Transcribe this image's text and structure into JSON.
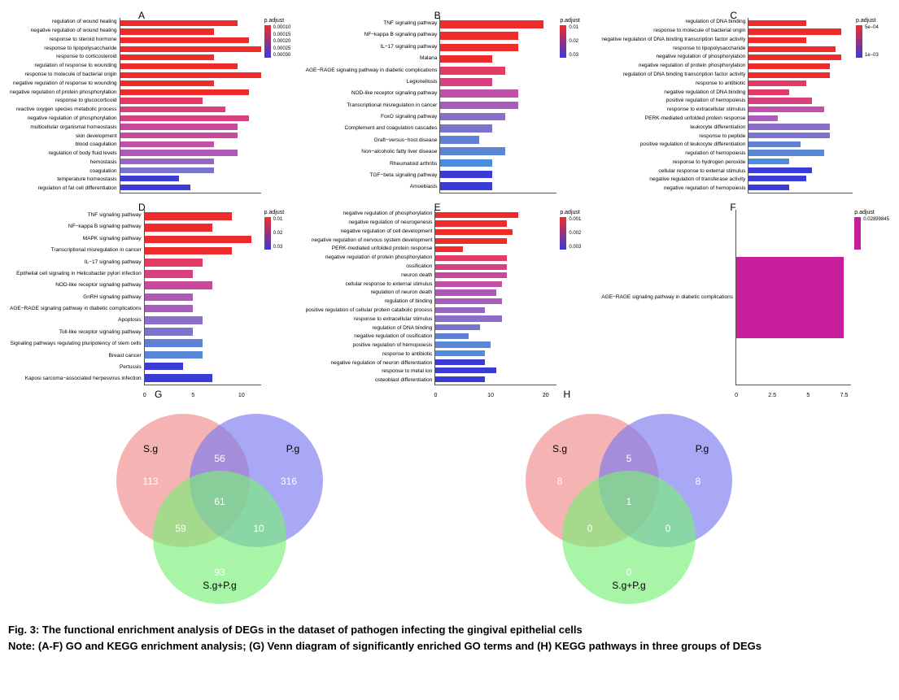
{
  "panels": {
    "A": {
      "label": "A",
      "type": "bar",
      "max_x": 12,
      "x_ticks": [
        0,
        5,
        10
      ],
      "legend_title": "p.adjust",
      "legend_values": [
        "0.00010",
        "0.00015",
        "0.00020",
        "0.00025",
        "0.00030"
      ],
      "gradient_top": "#ee2c2c",
      "gradient_bottom": "#3b3bd6",
      "items": [
        {
          "label": "regulation of wound healing",
          "value": 10,
          "color": "#ee2c2c"
        },
        {
          "label": "negative regulation of wound healing",
          "value": 8,
          "color": "#ee2c2c"
        },
        {
          "label": "response to steroid hormone",
          "value": 11,
          "color": "#ee2c2c"
        },
        {
          "label": "response to lipopolysaccharide",
          "value": 12,
          "color": "#ee2c2c"
        },
        {
          "label": "response to corticosteroid",
          "value": 8,
          "color": "#ee2c2c"
        },
        {
          "label": "regulation of response to wounding",
          "value": 10,
          "color": "#ee2c2c"
        },
        {
          "label": "response to molecule of bacterial origin",
          "value": 12,
          "color": "#ee2c2c"
        },
        {
          "label": "negative regulation of response to wounding",
          "value": 8,
          "color": "#ee2c2c"
        },
        {
          "label": "negative regulation of protein phosphorylation",
          "value": 11,
          "color": "#ee2c2c"
        },
        {
          "label": "response to glucocorticoid",
          "value": 7,
          "color": "#e43b66"
        },
        {
          "label": "reactive oxygen species metabolic process",
          "value": 9,
          "color": "#d8407f"
        },
        {
          "label": "negative regulation of phosphorylation",
          "value": 11,
          "color": "#d8407f"
        },
        {
          "label": "multicellular organismal homeostasis",
          "value": 10,
          "color": "#c84a9a"
        },
        {
          "label": "skin development",
          "value": 10,
          "color": "#c84a9a"
        },
        {
          "label": "blood coagulation",
          "value": 8,
          "color": "#c050a8"
        },
        {
          "label": "regulation of body fluid levels",
          "value": 10,
          "color": "#b058b6"
        },
        {
          "label": "hemostasis",
          "value": 8,
          "color": "#9a64c2"
        },
        {
          "label": "coagulation",
          "value": 8,
          "color": "#7a74cc"
        },
        {
          "label": "temperature homeostasis",
          "value": 5,
          "color": "#3b3bd6"
        },
        {
          "label": "regulation of fat cell differentiation",
          "value": 6,
          "color": "#3b3bd6"
        }
      ]
    },
    "B": {
      "label": "B",
      "type": "bar",
      "max_x": 9,
      "x_ticks": [
        0,
        2,
        4,
        6,
        8
      ],
      "legend_title": "p.adjust",
      "legend_values": [
        "0.01",
        "0.02",
        "0.03"
      ],
      "gradient_top": "#ee2c2c",
      "gradient_bottom": "#3b3bd6",
      "items": [
        {
          "label": "TNF signaling pathway",
          "value": 8,
          "color": "#ee2c2c"
        },
        {
          "label": "NF−kappa B signaling pathway",
          "value": 6,
          "color": "#ee2c2c"
        },
        {
          "label": "IL−17 signaling pathway",
          "value": 6,
          "color": "#ee2c2c"
        },
        {
          "label": "Malaria",
          "value": 4,
          "color": "#ee2c2c"
        },
        {
          "label": "AGE−RAGE signaling pathway in diabetic complications",
          "value": 5,
          "color": "#e43b66"
        },
        {
          "label": "Legionellosis",
          "value": 4,
          "color": "#d8407f"
        },
        {
          "label": "NOD-like receptor signaling pathway",
          "value": 6,
          "color": "#c050a8"
        },
        {
          "label": "Transcriptional misregulation in cancer",
          "value": 6,
          "color": "#a85cbc"
        },
        {
          "label": "FoxO signaling pathway",
          "value": 5,
          "color": "#8a6ec8"
        },
        {
          "label": "Complement and coagulation cascades",
          "value": 4,
          "color": "#7a74cc"
        },
        {
          "label": "Graft−versus−host disease",
          "value": 3,
          "color": "#6080d4"
        },
        {
          "label": "Non−alcoholic fatty liver disease",
          "value": 5,
          "color": "#5a86d6"
        },
        {
          "label": "Rheumatoid arthritis",
          "value": 4,
          "color": "#4b8cdc"
        },
        {
          "label": "TGF−beta signaling pathway",
          "value": 4,
          "color": "#3b3bd6"
        },
        {
          "label": "Amoebiasis",
          "value": 4,
          "color": "#3b3bd6"
        }
      ]
    },
    "C": {
      "label": "C",
      "type": "bar",
      "max_x": 18,
      "x_ticks": [
        0,
        5,
        10,
        15
      ],
      "legend_title": "p.adjust",
      "legend_values": [
        "5e−04",
        "1e−03"
      ],
      "gradient_top": "#ee2c2c",
      "gradient_bottom": "#3b3bd6",
      "items": [
        {
          "label": "regulation of DNA binding",
          "value": 10,
          "color": "#ee2c2c"
        },
        {
          "label": "response to molecule of bacterial origin",
          "value": 16,
          "color": "#ee2c2c"
        },
        {
          "label": "negative regulation of DNA binding transcription factor activity",
          "value": 10,
          "color": "#ee2c2c"
        },
        {
          "label": "response to lipopolysaccharide",
          "value": 15,
          "color": "#ee2c2c"
        },
        {
          "label": "negative regulation of phosphorylation",
          "value": 16,
          "color": "#ee2c2c"
        },
        {
          "label": "negative regulation of protein phosphorylation",
          "value": 14,
          "color": "#ee2c2c"
        },
        {
          "label": "regulation of DNA binding transcription factor activity",
          "value": 14,
          "color": "#ee2c2c"
        },
        {
          "label": "response to antibiotic",
          "value": 10,
          "color": "#e43b66"
        },
        {
          "label": "negative regulation of DNA binding",
          "value": 7,
          "color": "#e43b66"
        },
        {
          "label": "positive regulation of hemopoiesis",
          "value": 11,
          "color": "#d8407f"
        },
        {
          "label": "response to extracellular stimulus",
          "value": 13,
          "color": "#c050a8"
        },
        {
          "label": "PERK-mediated unfolded protein response",
          "value": 5,
          "color": "#a85cbc"
        },
        {
          "label": "leukocyte differentiation",
          "value": 14,
          "color": "#8a6ec8"
        },
        {
          "label": "response to peptide",
          "value": 14,
          "color": "#7a74cc"
        },
        {
          "label": "positive regulation of leukocyte differentiation",
          "value": 9,
          "color": "#6080d4"
        },
        {
          "label": "regulation of hemopoiesis",
          "value": 13,
          "color": "#5a86d6"
        },
        {
          "label": "response to hydrogen peroxide",
          "value": 7,
          "color": "#4b8cdc"
        },
        {
          "label": "cellular response to external stimulus",
          "value": 11,
          "color": "#3b3bd6"
        },
        {
          "label": "negative regulation of transferase activity",
          "value": 10,
          "color": "#3b3bd6"
        },
        {
          "label": "negative regulation of hemopoiesis",
          "value": 7,
          "color": "#3b3bd6"
        }
      ]
    },
    "D": {
      "label": "D",
      "type": "bar",
      "max_x": 12,
      "x_ticks": [
        0,
        5,
        10
      ],
      "legend_title": "p.adjust",
      "legend_values": [
        "0.01",
        "0.02",
        "0.03"
      ],
      "gradient_top": "#ee2c2c",
      "gradient_bottom": "#3b3bd6",
      "items": [
        {
          "label": "TNF signaling pathway",
          "value": 9,
          "color": "#ee2c2c"
        },
        {
          "label": "NF−kappa B signaling pathway",
          "value": 7,
          "color": "#ee2c2c"
        },
        {
          "label": "MAPK signaling pathway",
          "value": 11,
          "color": "#ee2c2c"
        },
        {
          "label": "Transcriptional misregulation in cancer",
          "value": 9,
          "color": "#ee2c2c"
        },
        {
          "label": "IL−17 signaling pathway",
          "value": 6,
          "color": "#e43b66"
        },
        {
          "label": "Epithelial cell signaling in Helicobacter pylori infection",
          "value": 5,
          "color": "#d8407f"
        },
        {
          "label": "NOD-like receptor signaling pathway",
          "value": 7,
          "color": "#c84a9a"
        },
        {
          "label": "GnRH signaling pathway",
          "value": 5,
          "color": "#b058b6"
        },
        {
          "label": "AGE−RAGE signaling pathway in diabetic complications",
          "value": 5,
          "color": "#a85cbc"
        },
        {
          "label": "Apoptosis",
          "value": 6,
          "color": "#8a6ec8"
        },
        {
          "label": "Toll-like receptor signaling pathway",
          "value": 5,
          "color": "#7a74cc"
        },
        {
          "label": "Signaling pathways regulating pluripotency of stem cells",
          "value": 6,
          "color": "#6080d4"
        },
        {
          "label": "Breast cancer",
          "value": 6,
          "color": "#5a86d6"
        },
        {
          "label": "Pertussis",
          "value": 4,
          "color": "#3b3bd6"
        },
        {
          "label": "Kaposi sarcoma−associated herpesvirus infection",
          "value": 7,
          "color": "#3b3bd6"
        }
      ]
    },
    "E": {
      "label": "E",
      "type": "bar",
      "max_x": 22,
      "x_ticks": [
        0,
        10,
        20
      ],
      "legend_title": "p.adjust",
      "legend_values": [
        "0.001",
        "0.002",
        "0.003"
      ],
      "gradient_top": "#ee2c2c",
      "gradient_bottom": "#3b3bd6",
      "items": [
        {
          "label": "negative regulation of phosphorylation",
          "value": 15,
          "color": "#ee2c2c"
        },
        {
          "label": "negative regulation of neurogenesis",
          "value": 13,
          "color": "#ee2c2c"
        },
        {
          "label": "negative regulation of cell development",
          "value": 14,
          "color": "#ee2c2c"
        },
        {
          "label": "negative regulation of nervous system development",
          "value": 13,
          "color": "#ee2c2c"
        },
        {
          "label": "PERK-mediated unfolded protein response",
          "value": 5,
          "color": "#ee2c2c"
        },
        {
          "label": "negative regulation of protein phosphorylation",
          "value": 13,
          "color": "#e43b66"
        },
        {
          "label": "ossification",
          "value": 13,
          "color": "#d8407f"
        },
        {
          "label": "neuron death",
          "value": 13,
          "color": "#c84a9a"
        },
        {
          "label": "cellular response to external stimulus",
          "value": 12,
          "color": "#c050a8"
        },
        {
          "label": "regulation of neuron death",
          "value": 11,
          "color": "#b058b6"
        },
        {
          "label": "regulation of binding",
          "value": 12,
          "color": "#a85cbc"
        },
        {
          "label": "positive regulation of cellular protein catabolic process",
          "value": 9,
          "color": "#9a64c2"
        },
        {
          "label": "response to extracellular stimulus",
          "value": 12,
          "color": "#8a6ec8"
        },
        {
          "label": "regulation of DNA binding",
          "value": 8,
          "color": "#7a74cc"
        },
        {
          "label": "negative regulation of ossification",
          "value": 6,
          "color": "#6080d4"
        },
        {
          "label": "positive regulation of hemopoiesis",
          "value": 10,
          "color": "#5a86d6"
        },
        {
          "label": "response to antibiotic",
          "value": 9,
          "color": "#4b8cdc"
        },
        {
          "label": "negative regulation of neuron differentiation",
          "value": 9,
          "color": "#3b3bd6"
        },
        {
          "label": "response to metal ion",
          "value": 11,
          "color": "#3b3bd6"
        },
        {
          "label": "osteoblast differentiation",
          "value": 9,
          "color": "#3b3bd6"
        }
      ]
    },
    "F": {
      "label": "F",
      "type": "bar",
      "max_x": 8,
      "x_ticks": [
        0.0,
        2.5,
        5.0,
        7.5
      ],
      "legend_title": "p.adjust",
      "legend_values": [
        "0.02899845"
      ],
      "gradient_top": "#c81e9b",
      "gradient_bottom": "#c81e9b",
      "items": [
        {
          "label": "AGE−RAGE signaling pathway in diabetic complications",
          "value": 7.5,
          "color": "#c81e9b"
        }
      ]
    }
  },
  "venns": {
    "G": {
      "label": "G",
      "sets": [
        {
          "name": "S.g",
          "color": "#ef8a8a",
          "opacity": 0.7
        },
        {
          "name": "P.g",
          "color": "#7a7aef",
          "opacity": 0.7
        },
        {
          "name": "S.g+P.g",
          "color": "#7aef7a",
          "opacity": 0.7
        }
      ],
      "values": {
        "a_only": "113",
        "b_only": "316",
        "c_only": "93",
        "ab": "56",
        "ac": "59",
        "bc": "10",
        "abc": "61"
      }
    },
    "H": {
      "label": "H",
      "sets": [
        {
          "name": "S.g",
          "color": "#ef8a8a",
          "opacity": 0.7
        },
        {
          "name": "P.g",
          "color": "#7a7aef",
          "opacity": 0.7
        },
        {
          "name": "S.g+P.g",
          "color": "#7aef7a",
          "opacity": 0.7
        }
      ],
      "values": {
        "a_only": "8",
        "b_only": "8",
        "c_only": "0",
        "ab": "5",
        "ac": "0",
        "bc": "0",
        "abc": "1"
      }
    }
  },
  "caption": {
    "title": "Fig. 3: The functional enrichment analysis of DEGs in the dataset of pathogen infecting the gingival epithelial cells",
    "note": "Note: (A-F) GO and KEGG enrichment analysis; (G) Venn diagram of significantly enriched GO terms and (H) KEGG pathways in three groups of DEGs"
  }
}
